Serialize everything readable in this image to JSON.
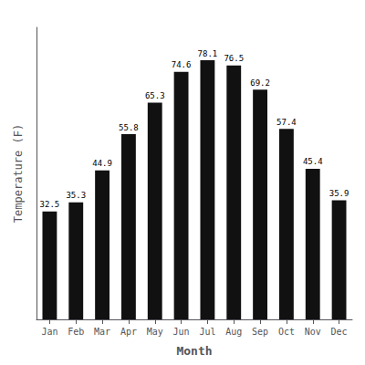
{
  "chart_data": {
    "type": "bar",
    "categories": [
      "Jan",
      "Feb",
      "Mar",
      "Apr",
      "May",
      "Jun",
      "Jul",
      "Aug",
      "Sep",
      "Oct",
      "Nov",
      "Dec"
    ],
    "values": [
      32.5,
      35.3,
      44.9,
      55.8,
      65.3,
      74.6,
      78.1,
      76.5,
      69.2,
      57.4,
      45.4,
      35.9
    ],
    "color": "#111111",
    "xlabel": "Month",
    "ylabel": "Temperature (F)",
    "ylim": [
      0,
      88
    ],
    "yticks": [],
    "grid": false,
    "data_labels": true,
    "tick_labels": "x"
  }
}
